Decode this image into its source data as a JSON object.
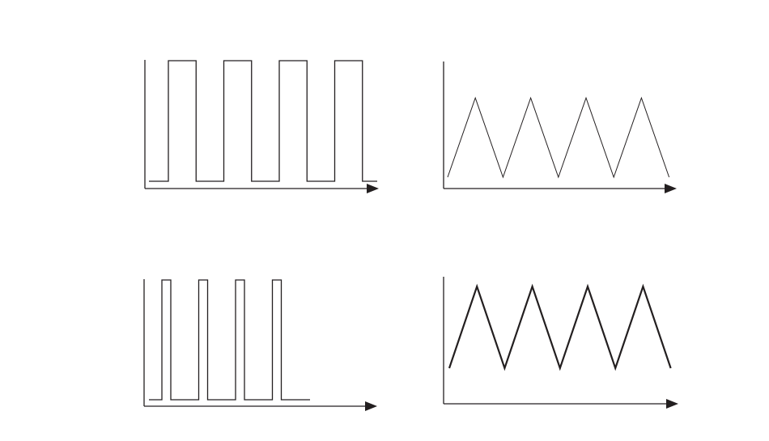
{
  "colors": {
    "line": "#231f20",
    "background": "#ffffff"
  },
  "chart_data": [
    {
      "type": "line",
      "title": "",
      "waveform": "square",
      "xlabel": "",
      "ylabel": "",
      "period_count": 4,
      "duty_cycle": 0.5,
      "levels": {
        "low": 0,
        "high": 1
      },
      "series": [
        {
          "values": [
            0,
            1,
            0,
            1,
            0,
            1,
            0,
            1,
            0
          ]
        }
      ]
    },
    {
      "type": "line",
      "title": "",
      "waveform": "triangle",
      "xlabel": "",
      "ylabel": "",
      "period_count": 4,
      "levels": {
        "low": 0,
        "high": 1
      },
      "series": [
        {
          "values": [
            0,
            1,
            0,
            1,
            0,
            1,
            0,
            1,
            0
          ]
        }
      ]
    },
    {
      "type": "line",
      "title": "",
      "waveform": "pulse",
      "xlabel": "",
      "ylabel": "",
      "period_count": 4,
      "duty_cycle": 0.25,
      "levels": {
        "low": 0,
        "high": 1
      },
      "series": [
        {
          "values": [
            0,
            1,
            0,
            1,
            0,
            1,
            0,
            1,
            0
          ]
        }
      ]
    },
    {
      "type": "line",
      "title": "",
      "waveform": "triangle",
      "xlabel": "",
      "ylabel": "",
      "period_count": 4,
      "levels": {
        "low": 0,
        "high": 1
      },
      "series": [
        {
          "values": [
            0,
            1,
            0,
            1,
            0,
            1,
            0,
            1,
            0
          ]
        }
      ]
    }
  ]
}
